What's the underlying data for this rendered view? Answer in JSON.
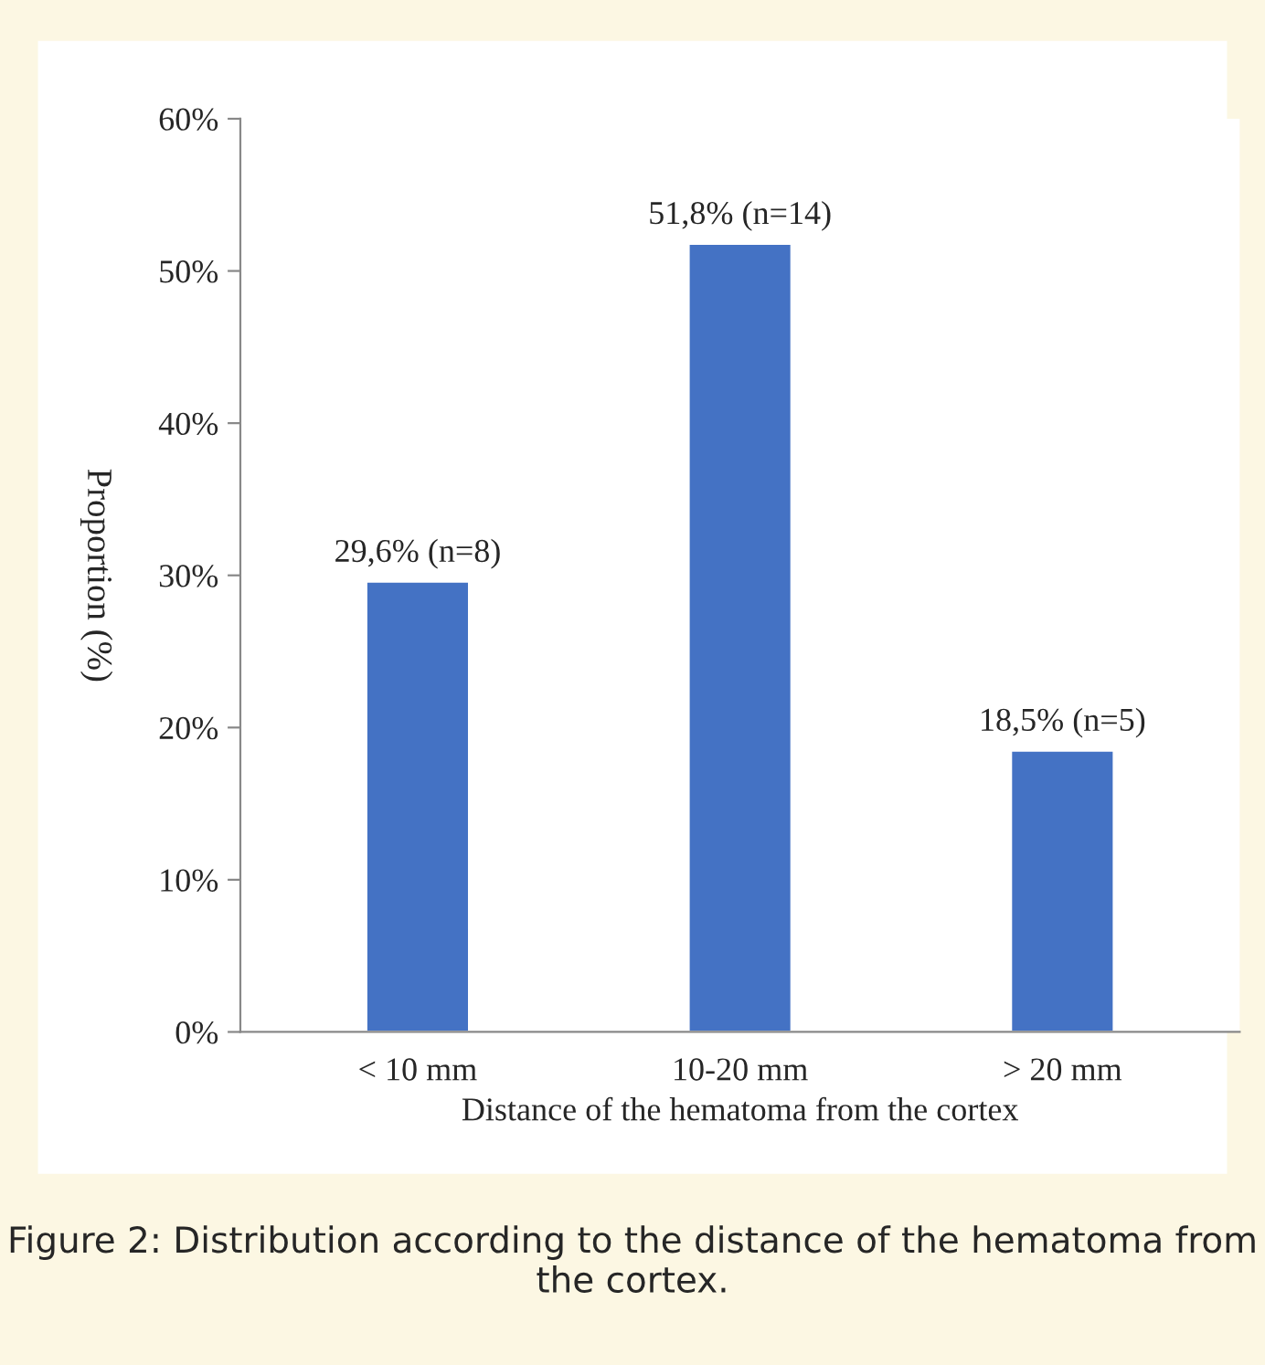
{
  "chart_data": {
    "type": "bar",
    "xlabel": "Distance of the hematoma from the cortex",
    "ylabel": "Proportion (%)",
    "categories": [
      "< 10 mm",
      "10-20 mm",
      "> 20 mm"
    ],
    "values": [
      29.6,
      51.8,
      18.5
    ],
    "value_labels": [
      "29,6% (n=8)",
      "51,8% (n=14)",
      "18,5% (n=5)"
    ],
    "color": "#4472c4",
    "ylim": [
      0,
      60
    ],
    "yticks": [
      {
        "value": 0,
        "label": "0%"
      },
      {
        "value": 10,
        "label": "10%"
      },
      {
        "value": 20,
        "label": "20%"
      },
      {
        "value": 30,
        "label": "30%"
      },
      {
        "value": 40,
        "label": "40%"
      },
      {
        "value": 50,
        "label": "50%"
      },
      {
        "value": 60,
        "label": "60%"
      }
    ],
    "grid": false,
    "legend": false,
    "annotations": [
      "Figure 2: Distribution according to the distance of the hematoma from the cortex."
    ]
  }
}
